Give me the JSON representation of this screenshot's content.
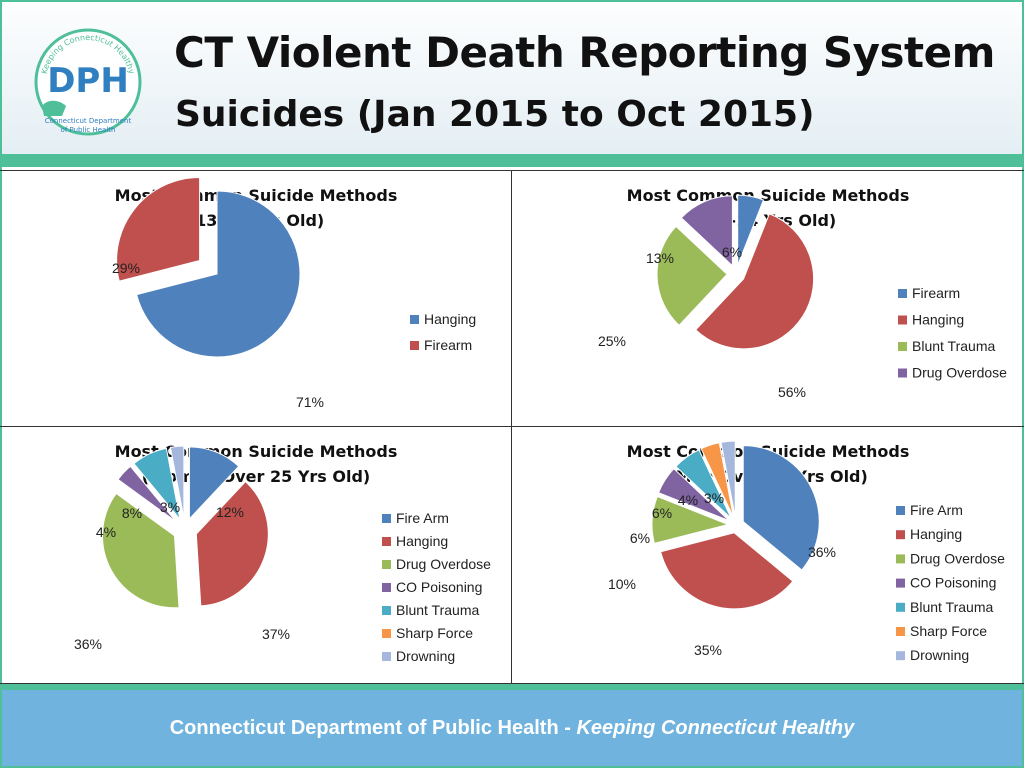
{
  "header": {
    "title": "CT Violent Death Reporting System",
    "subtitle": "Suicides (Jan 2015 to Oct 2015)"
  },
  "logo": {
    "letters": "DPH",
    "arc_text": "Keeping Connecticut Healthy",
    "caption_line1": "Connecticut Department",
    "caption_line2": "of Public Health"
  },
  "footer": {
    "organization": "Connecticut Department of Public Health",
    "separator": " - ",
    "tagline": "Keeping Connecticut Healthy"
  },
  "colors": {
    "Hanging": "#c0504d",
    "Firearm": "#4f81bd",
    "Fire Arm": "#4f81bd",
    "Blunt Trauma": "#9bbb59",
    "Drug Overdose": "#9bbb59",
    "CO Poisoning": "#8064a2",
    "Blunt Trauma (4)": "#4bacc6",
    "Sharp Force": "#f79646",
    "Drowning": "#a5b7dd",
    "Drug Overdose (pair)": "#8064a2",
    "accent_green": "#4fbf9a",
    "footer_blue": "#6fb3de"
  },
  "chart_data": [
    {
      "type": "pie",
      "title_line1": "Most Common Suicide Methods",
      "title_line2": "(13-17 Yrs Old)",
      "categories": [
        "Hanging",
        "Firearm"
      ],
      "values": [
        71,
        29
      ],
      "labels": [
        "71%",
        "29%"
      ],
      "colors": [
        "#4f81bd",
        "#c0504d"
      ],
      "legend": [
        "Hanging",
        "Firearm"
      ],
      "legend_colors": [
        "#4f81bd",
        "#c0504d"
      ],
      "legend_position": "right"
    },
    {
      "type": "pie",
      "title_line1": "Most Common Suicide Methods",
      "title_line2": "(18-24 Yrs Old)",
      "categories": [
        "Firearm",
        "Hanging",
        "Blunt Trauma",
        "Drug Overdose"
      ],
      "values": [
        6,
        56,
        25,
        13
      ],
      "labels": [
        "6%",
        "56%",
        "25%",
        "13%"
      ],
      "colors": [
        "#4f81bd",
        "#c0504d",
        "#9bbb59",
        "#8064a2"
      ],
      "legend": [
        "Firearm",
        "Hanging",
        "Blunt Trauma",
        "Drug Overdose"
      ],
      "legend_colors": [
        "#4f81bd",
        "#c0504d",
        "#9bbb59",
        "#8064a2"
      ],
      "legend_position": "right"
    },
    {
      "type": "pie",
      "title_line1": "Most Common Suicide Methods",
      "title_line2": "(Women Over 25 Yrs Old)",
      "categories": [
        "Fire Arm",
        "Hanging",
        "Drug Overdose",
        "CO Poisoning",
        "Blunt Trauma",
        "Sharp Force",
        "Drowning"
      ],
      "values": [
        12,
        37,
        36,
        4,
        8,
        0,
        3
      ],
      "labels": [
        "12%",
        "37%",
        "36%",
        "4%",
        "8%",
        "",
        "3%"
      ],
      "colors": [
        "#4f81bd",
        "#c0504d",
        "#9bbb59",
        "#8064a2",
        "#4bacc6",
        "#f79646",
        "#a5b7dd"
      ],
      "legend": [
        "Fire Arm",
        "Hanging",
        "Drug Overdose",
        "CO Poisoning",
        "Blunt Trauma",
        "Sharp Force",
        "Drowning"
      ],
      "legend_colors": [
        "#4f81bd",
        "#c0504d",
        "#9bbb59",
        "#8064a2",
        "#4bacc6",
        "#f79646",
        "#a5b7dd"
      ],
      "legend_position": "right"
    },
    {
      "type": "pie",
      "title_line1": "Most Common Suicide Methods",
      "title_line2": "(Men Over 25 Yrs Old)",
      "categories": [
        "Fire Arm",
        "Hanging",
        "Drug Overdose",
        "CO Poisoning",
        "Blunt Trauma",
        "Sharp Force",
        "Drowning"
      ],
      "values": [
        36,
        35,
        10,
        6,
        6,
        4,
        3
      ],
      "labels": [
        "36%",
        "35%",
        "10%",
        "6%",
        "6%",
        "4%",
        "3%"
      ],
      "colors": [
        "#4f81bd",
        "#c0504d",
        "#9bbb59",
        "#8064a2",
        "#4bacc6",
        "#f79646",
        "#a5b7dd"
      ],
      "legend": [
        "Fire Arm",
        "Hanging",
        "Drug Overdose",
        "CO Poisoning",
        "Blunt Trauma",
        "Sharp Force",
        "Drowning"
      ],
      "legend_colors": [
        "#4f81bd",
        "#c0504d",
        "#9bbb59",
        "#8064a2",
        "#4bacc6",
        "#f79646",
        "#a5b7dd"
      ],
      "legend_position": "right"
    }
  ]
}
